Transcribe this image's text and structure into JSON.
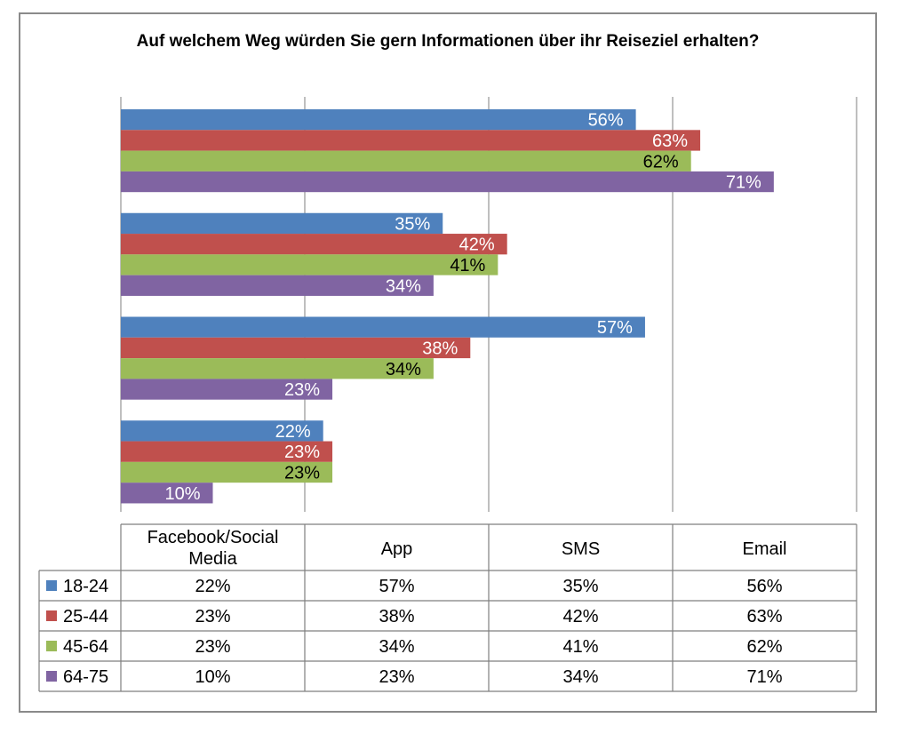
{
  "chart_data": {
    "type": "bar",
    "orientation": "horizontal",
    "title": "Auf welchem Weg würden Sie gern Informationen über ihr Reiseziel erhalten?",
    "categories": [
      "Facebook/Social Media",
      "App",
      "SMS",
      "Email"
    ],
    "series": [
      {
        "name": "18-24",
        "color": "#4f81bd",
        "values": [
          22,
          57,
          35,
          56
        ]
      },
      {
        "name": "25-44",
        "color": "#c0504d",
        "values": [
          23,
          38,
          42,
          63
        ]
      },
      {
        "name": "45-64",
        "color": "#9bbb59",
        "values": [
          23,
          34,
          41,
          62
        ]
      },
      {
        "name": "64-75",
        "color": "#8064a2",
        "values": [
          10,
          23,
          34,
          71
        ]
      }
    ],
    "value_suffix": "%",
    "xlim": [
      0,
      80
    ],
    "grid": true,
    "legend": "data-table",
    "data_table": true
  }
}
